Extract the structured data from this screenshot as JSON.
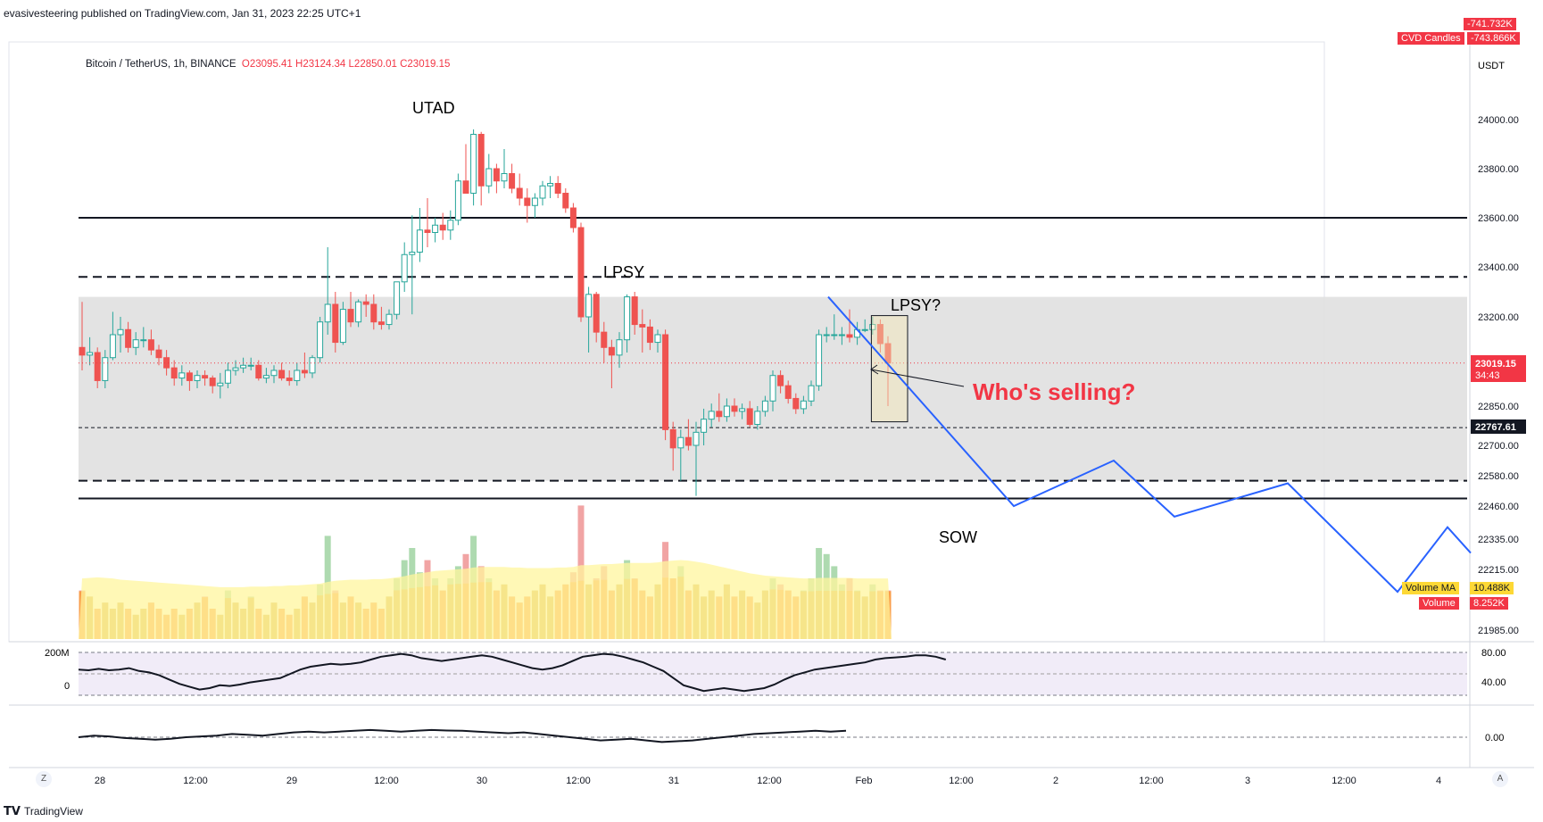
{
  "header": {
    "published": "evasivesteering published on TradingView.com, Jan 31, 2023 22:25 UTC+1"
  },
  "symbol": {
    "name": "Bitcoin / TetherUS, 1h, BINANCE",
    "open": "O23095.41",
    "high": "H23124.34",
    "low": "L22850.01",
    "close": "C23019.15"
  },
  "indicator_badges": {
    "top_hidden": "-741.732K",
    "cvd_label": "CVD Candles",
    "cvd_value": "-743.866K",
    "volume_ma_label": "Volume MA",
    "volume_ma_value": "10.488K",
    "volume_label": "Volume",
    "volume_value": "8.252K"
  },
  "price_axis": {
    "currency": "USDT",
    "ticks": [
      "24000.00",
      "23800.00",
      "23600.00",
      "23400.00",
      "23200.00",
      "22850.00",
      "22700.00",
      "22580.00",
      "22460.00",
      "22335.00",
      "22215.00",
      "21985.00"
    ],
    "current_price": "23019.15",
    "countdown": "34:43",
    "marked_level": "22767.61",
    "colors": {
      "current": "#f23645",
      "marked": "#131722"
    }
  },
  "osc1_axis": {
    "ticks": [
      "80.00",
      "40.00"
    ],
    "left_labels": [
      "200M",
      "0"
    ]
  },
  "osc2_axis": {
    "ticks": [
      "0.00"
    ]
  },
  "time_axis": {
    "labels": [
      "28",
      "12:00",
      "29",
      "12:00",
      "30",
      "12:00",
      "31",
      "12:00",
      "Feb",
      "12:00",
      "2",
      "12:00",
      "3",
      "12:00",
      "4"
    ],
    "corner_left": "Z",
    "corner_right": "A"
  },
  "annotations": {
    "utad": "UTAD",
    "lpsy": "LPSY",
    "lpsy_q": "LPSY?",
    "sow": "SOW",
    "whos_selling": "Who's selling?"
  },
  "footer": {
    "brand": "TradingView"
  },
  "colors": {
    "up": "#26a69a",
    "down": "#ef5350",
    "up_hollow": "#ffffff",
    "projection": "#2962ff",
    "zone": "#e0e0e0",
    "callout": "#f23645",
    "vol_ma": "#fff176"
  },
  "chart_data": {
    "type": "candlestick",
    "title": "Bitcoin / TetherUS, 1h, BINANCE",
    "interval": "1h",
    "xlabel": "",
    "ylabel": "USDT",
    "ylim": [
      21985,
      24000
    ],
    "candles": [
      {
        "o": 23080,
        "h": 23260,
        "l": 22990,
        "c": 23050
      },
      {
        "o": 23050,
        "h": 23120,
        "l": 23010,
        "c": 23060
      },
      {
        "o": 23060,
        "h": 23080,
        "l": 22920,
        "c": 22950
      },
      {
        "o": 22950,
        "h": 23070,
        "l": 22920,
        "c": 23040
      },
      {
        "o": 23040,
        "h": 23220,
        "l": 23030,
        "c": 23130
      },
      {
        "o": 23130,
        "h": 23200,
        "l": 23060,
        "c": 23150
      },
      {
        "o": 23150,
        "h": 23180,
        "l": 23060,
        "c": 23080
      },
      {
        "o": 23080,
        "h": 23140,
        "l": 23050,
        "c": 23110
      },
      {
        "o": 23110,
        "h": 23160,
        "l": 23080,
        "c": 23110
      },
      {
        "o": 23110,
        "h": 23150,
        "l": 23050,
        "c": 23070
      },
      {
        "o": 23070,
        "h": 23090,
        "l": 23010,
        "c": 23040
      },
      {
        "o": 23040,
        "h": 23070,
        "l": 22970,
        "c": 23000
      },
      {
        "o": 23000,
        "h": 23030,
        "l": 22930,
        "c": 22960
      },
      {
        "o": 22960,
        "h": 23010,
        "l": 22930,
        "c": 22980
      },
      {
        "o": 22980,
        "h": 22990,
        "l": 22910,
        "c": 22950
      },
      {
        "o": 22950,
        "h": 22990,
        "l": 22920,
        "c": 22970
      },
      {
        "o": 22970,
        "h": 22990,
        "l": 22930,
        "c": 22960
      },
      {
        "o": 22960,
        "h": 22970,
        "l": 22900,
        "c": 22930
      },
      {
        "o": 22930,
        "h": 22980,
        "l": 22880,
        "c": 22940
      },
      {
        "o": 22940,
        "h": 23020,
        "l": 22920,
        "c": 22990
      },
      {
        "o": 22990,
        "h": 23030,
        "l": 22970,
        "c": 23000
      },
      {
        "o": 23000,
        "h": 23040,
        "l": 22980,
        "c": 23010
      },
      {
        "o": 23010,
        "h": 23040,
        "l": 22990,
        "c": 23010
      },
      {
        "o": 23010,
        "h": 23030,
        "l": 22950,
        "c": 22960
      },
      {
        "o": 22960,
        "h": 23000,
        "l": 22940,
        "c": 22970
      },
      {
        "o": 22970,
        "h": 23010,
        "l": 22940,
        "c": 22990
      },
      {
        "o": 22990,
        "h": 23020,
        "l": 22950,
        "c": 22960
      },
      {
        "o": 22960,
        "h": 22990,
        "l": 22930,
        "c": 22950
      },
      {
        "o": 22950,
        "h": 23020,
        "l": 22930,
        "c": 22990
      },
      {
        "o": 22990,
        "h": 23060,
        "l": 22960,
        "c": 22980
      },
      {
        "o": 22980,
        "h": 23050,
        "l": 22960,
        "c": 23040
      },
      {
        "o": 23040,
        "h": 23200,
        "l": 23020,
        "c": 23180
      },
      {
        "o": 23180,
        "h": 23480,
        "l": 23130,
        "c": 23250
      },
      {
        "o": 23250,
        "h": 23300,
        "l": 23060,
        "c": 23100
      },
      {
        "o": 23100,
        "h": 23260,
        "l": 23090,
        "c": 23230
      },
      {
        "o": 23230,
        "h": 23300,
        "l": 23160,
        "c": 23180
      },
      {
        "o": 23180,
        "h": 23270,
        "l": 23160,
        "c": 23260
      },
      {
        "o": 23260,
        "h": 23290,
        "l": 23200,
        "c": 23250
      },
      {
        "o": 23250,
        "h": 23290,
        "l": 23150,
        "c": 23180
      },
      {
        "o": 23180,
        "h": 23240,
        "l": 23150,
        "c": 23170
      },
      {
        "o": 23170,
        "h": 23230,
        "l": 23150,
        "c": 23210
      },
      {
        "o": 23210,
        "h": 23330,
        "l": 23190,
        "c": 23340
      },
      {
        "o": 23340,
        "h": 23500,
        "l": 23300,
        "c": 23450
      },
      {
        "o": 23450,
        "h": 23610,
        "l": 23210,
        "c": 23460
      },
      {
        "o": 23460,
        "h": 23640,
        "l": 23420,
        "c": 23550
      },
      {
        "o": 23550,
        "h": 23680,
        "l": 23480,
        "c": 23540
      },
      {
        "o": 23540,
        "h": 23600,
        "l": 23500,
        "c": 23570
      },
      {
        "o": 23570,
        "h": 23620,
        "l": 23510,
        "c": 23550
      },
      {
        "o": 23550,
        "h": 23630,
        "l": 23510,
        "c": 23590
      },
      {
        "o": 23590,
        "h": 23780,
        "l": 23570,
        "c": 23750
      },
      {
        "o": 23750,
        "h": 23900,
        "l": 23700,
        "c": 23700
      },
      {
        "o": 23700,
        "h": 23960,
        "l": 23650,
        "c": 23940
      },
      {
        "o": 23940,
        "h": 23950,
        "l": 23650,
        "c": 23730
      },
      {
        "o": 23730,
        "h": 23860,
        "l": 23700,
        "c": 23800
      },
      {
        "o": 23800,
        "h": 23820,
        "l": 23700,
        "c": 23750
      },
      {
        "o": 23750,
        "h": 23880,
        "l": 23720,
        "c": 23780
      },
      {
        "o": 23780,
        "h": 23820,
        "l": 23700,
        "c": 23720
      },
      {
        "o": 23720,
        "h": 23780,
        "l": 23650,
        "c": 23680
      },
      {
        "o": 23680,
        "h": 23720,
        "l": 23580,
        "c": 23650
      },
      {
        "o": 23650,
        "h": 23700,
        "l": 23600,
        "c": 23680
      },
      {
        "o": 23680,
        "h": 23750,
        "l": 23650,
        "c": 23730
      },
      {
        "o": 23730,
        "h": 23770,
        "l": 23680,
        "c": 23740
      },
      {
        "o": 23740,
        "h": 23770,
        "l": 23680,
        "c": 23700
      },
      {
        "o": 23700,
        "h": 23720,
        "l": 23620,
        "c": 23640
      },
      {
        "o": 23640,
        "h": 23660,
        "l": 23540,
        "c": 23560
      },
      {
        "o": 23560,
        "h": 23580,
        "l": 23180,
        "c": 23200
      },
      {
        "o": 23200,
        "h": 23320,
        "l": 23060,
        "c": 23290
      },
      {
        "o": 23290,
        "h": 23300,
        "l": 23100,
        "c": 23140
      },
      {
        "o": 23140,
        "h": 23180,
        "l": 23020,
        "c": 23080
      },
      {
        "o": 23080,
        "h": 23110,
        "l": 22920,
        "c": 23050
      },
      {
        "o": 23050,
        "h": 23140,
        "l": 23000,
        "c": 23110
      },
      {
        "o": 23110,
        "h": 23290,
        "l": 23060,
        "c": 23280
      },
      {
        "o": 23280,
        "h": 23300,
        "l": 23130,
        "c": 23170
      },
      {
        "o": 23170,
        "h": 23230,
        "l": 23060,
        "c": 23160
      },
      {
        "o": 23160,
        "h": 23190,
        "l": 23070,
        "c": 23100
      },
      {
        "o": 23100,
        "h": 23150,
        "l": 23060,
        "c": 23130
      },
      {
        "o": 23130,
        "h": 23150,
        "l": 22720,
        "c": 22760
      },
      {
        "o": 22760,
        "h": 22790,
        "l": 22600,
        "c": 22690
      },
      {
        "o": 22690,
        "h": 22760,
        "l": 22560,
        "c": 22730
      },
      {
        "o": 22730,
        "h": 22800,
        "l": 22680,
        "c": 22700
      },
      {
        "o": 22700,
        "h": 22790,
        "l": 22500,
        "c": 22750
      },
      {
        "o": 22750,
        "h": 22840,
        "l": 22700,
        "c": 22800
      },
      {
        "o": 22800,
        "h": 22860,
        "l": 22770,
        "c": 22830
      },
      {
        "o": 22830,
        "h": 22900,
        "l": 22790,
        "c": 22810
      },
      {
        "o": 22810,
        "h": 22880,
        "l": 22790,
        "c": 22850
      },
      {
        "o": 22850,
        "h": 22880,
        "l": 22810,
        "c": 22830
      },
      {
        "o": 22830,
        "h": 22860,
        "l": 22800,
        "c": 22840
      },
      {
        "o": 22840,
        "h": 22870,
        "l": 22770,
        "c": 22780
      },
      {
        "o": 22780,
        "h": 22850,
        "l": 22760,
        "c": 22830
      },
      {
        "o": 22830,
        "h": 22890,
        "l": 22810,
        "c": 22870
      },
      {
        "o": 22870,
        "h": 22990,
        "l": 22830,
        "c": 22970
      },
      {
        "o": 22970,
        "h": 22990,
        "l": 22900,
        "c": 22930
      },
      {
        "o": 22930,
        "h": 22950,
        "l": 22860,
        "c": 22880
      },
      {
        "o": 22880,
        "h": 22900,
        "l": 22820,
        "c": 22840
      },
      {
        "o": 22840,
        "h": 22890,
        "l": 22820,
        "c": 22870
      },
      {
        "o": 22870,
        "h": 22950,
        "l": 22850,
        "c": 22930
      },
      {
        "o": 22930,
        "h": 23150,
        "l": 22910,
        "c": 23130
      },
      {
        "o": 23130,
        "h": 23160,
        "l": 23100,
        "c": 23130
      },
      {
        "o": 23130,
        "h": 23210,
        "l": 23110,
        "c": 23130
      },
      {
        "o": 23130,
        "h": 23160,
        "l": 23090,
        "c": 23130
      },
      {
        "o": 23130,
        "h": 23230,
        "l": 23100,
        "c": 23120
      },
      {
        "o": 23120,
        "h": 23180,
        "l": 23090,
        "c": 23150
      },
      {
        "o": 23150,
        "h": 23190,
        "l": 23140,
        "c": 23150
      },
      {
        "o": 23150,
        "h": 23200,
        "l": 23130,
        "c": 23170
      },
      {
        "o": 23170,
        "h": 23190,
        "l": 23060,
        "c": 23095
      },
      {
        "o": 23095,
        "h": 23124,
        "l": 22850,
        "c": 23019
      }
    ],
    "volume": [
      8,
      7,
      5,
      6,
      5,
      6,
      5,
      4,
      5,
      6,
      5,
      4,
      5,
      4,
      5,
      6,
      7,
      5,
      4,
      8,
      6,
      5,
      7,
      5,
      4,
      6,
      5,
      4,
      5,
      7,
      6,
      9,
      17,
      8,
      6,
      7,
      6,
      5,
      6,
      5,
      7,
      10,
      13,
      15,
      11,
      13,
      10,
      8,
      10,
      12,
      14,
      17,
      12,
      10,
      8,
      9,
      7,
      6,
      7,
      8,
      9,
      7,
      8,
      9,
      11,
      22,
      9,
      10,
      12,
      8,
      9,
      13,
      10,
      8,
      7,
      9,
      16,
      10,
      12,
      8,
      9,
      7,
      8,
      7,
      9,
      7,
      8,
      7,
      6,
      8,
      10,
      9,
      8,
      7,
      8,
      10,
      15,
      14,
      12,
      9,
      10,
      8,
      7,
      9,
      8,
      8
    ],
    "volume_ma": [
      10.5,
      10.6,
      10.7,
      10.6,
      10.5,
      10.3,
      10.2,
      10.1,
      10.0,
      9.9,
      9.8,
      9.7,
      9.6,
      9.5,
      9.4,
      9.3,
      9.2,
      9.1,
      9.0,
      9.0,
      9.0,
      9.0,
      9.1,
      9.1,
      9.1,
      9.2,
      9.2,
      9.3,
      9.3,
      9.4,
      9.5,
      9.6,
      9.9,
      10.1,
      10.2,
      10.3,
      10.3,
      10.3,
      10.4,
      10.4,
      10.5,
      10.7,
      10.9,
      11.2,
      11.4,
      11.6,
      11.8,
      11.9,
      12.0,
      12.1,
      12.2,
      12.4,
      12.5,
      12.5,
      12.5,
      12.5,
      12.4,
      12.4,
      12.3,
      12.3,
      12.3,
      12.3,
      12.4,
      12.4,
      12.5,
      12.8,
      12.8,
      12.9,
      13.0,
      13.0,
      13.1,
      13.2,
      13.2,
      13.2,
      13.2,
      13.3,
      13.5,
      13.6,
      13.7,
      13.6,
      13.4,
      13.2,
      12.9,
      12.6,
      12.3,
      12.0,
      11.7,
      11.4,
      11.2,
      11.0,
      10.9,
      10.8,
      10.7,
      10.6,
      10.5,
      10.5,
      10.6,
      10.6,
      10.6,
      10.6,
      10.6,
      10.5,
      10.5,
      10.5,
      10.5,
      10.5
    ],
    "osc1": [
      56,
      55,
      57,
      55,
      56,
      58,
      54,
      52,
      48,
      42,
      36,
      32,
      28,
      30,
      34,
      33,
      35,
      38,
      40,
      42,
      44,
      50,
      56,
      60,
      62,
      64,
      63,
      64,
      66,
      70,
      74,
      76,
      78,
      76,
      72,
      70,
      68,
      70,
      72,
      74,
      76,
      74,
      70,
      66,
      62,
      58,
      56,
      58,
      62,
      68,
      74,
      76,
      78,
      77,
      74,
      70,
      66,
      60,
      54,
      44,
      34,
      30,
      26,
      28,
      30,
      28,
      26,
      28,
      30,
      35,
      42,
      48,
      52,
      56,
      58,
      60,
      62,
      64,
      66,
      70,
      72,
      73,
      74,
      76,
      76,
      74,
      70
    ],
    "osc2": [
      0,
      0.1,
      0.05,
      -0.05,
      -0.1,
      -0.15,
      -0.1,
      0,
      0.05,
      0.1,
      0.2,
      0.15,
      0.1,
      0.2,
      0.3,
      0.35,
      0.3,
      0.35,
      0.4,
      0.45,
      0.4,
      0.35,
      0.4,
      0.45,
      0.42,
      0.4,
      0.35,
      0.3,
      0.25,
      0.3,
      0.2,
      0.1,
      0,
      -0.1,
      -0.2,
      -0.15,
      -0.1,
      -0.2,
      -0.3,
      -0.25,
      -0.2,
      -0.1,
      0,
      0.1,
      0.2,
      0.25,
      0.3,
      0.35,
      0.4,
      0.35,
      0.4
    ],
    "levels": {
      "resistance_solid": 23600,
      "dashed_upper": 23360,
      "zone_top": 23280,
      "marked_dashed": 22767.61,
      "dashed_lower": 22560,
      "support_solid": 22490
    },
    "projection": [
      [
        23280,
        0
      ],
      [
        22460,
        0
      ],
      [
        22640,
        0
      ],
      [
        22420,
        0
      ],
      [
        22550,
        0
      ],
      [
        22130,
        0
      ],
      [
        22380,
        0
      ],
      [
        22280,
        0
      ]
    ]
  }
}
